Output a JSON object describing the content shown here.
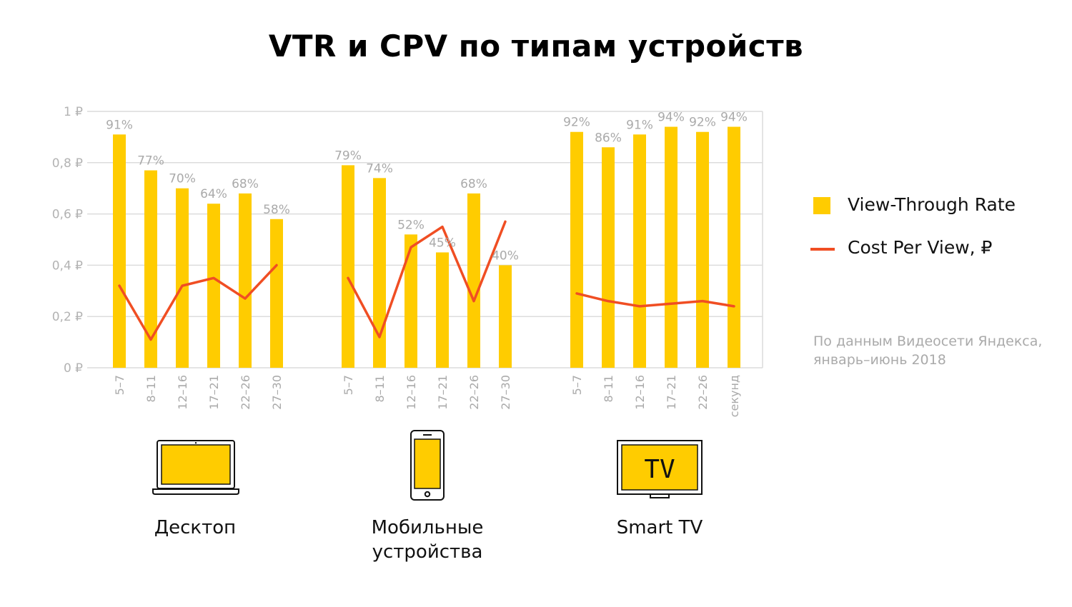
{
  "title": "VTR и CPV по типам устройств",
  "legend": {
    "vtr": "View-Through Rate",
    "cpv": "Cost Per View, ₽"
  },
  "source_note": "По данным Видеосети Яндекса, январь–июнь 2018",
  "devices": {
    "desktop": "Десктоп",
    "mobile": "Мобильные устройства",
    "tv": "Smart TV",
    "tv_screen_text": "TV"
  },
  "colors": {
    "bar": "#ffcc00",
    "line": "#f04e23",
    "grid": "#dcdcdc",
    "tick": "#b3b3b3"
  },
  "icons": [
    "laptop-icon",
    "smartphone-icon",
    "tv-icon"
  ],
  "chart_data": {
    "type": "bar",
    "title": "VTR и CPV по типам устройств",
    "ylim": [
      0,
      1
    ],
    "y_ticks": [
      "0 ₽",
      "0,2 ₽",
      "0,4 ₽",
      "0,6 ₽",
      "0,8 ₽",
      "1 ₽"
    ],
    "grid": true,
    "legend_position": "right",
    "groups": [
      {
        "name": "Десктоп",
        "categories": [
          "5–7",
          "8–11",
          "12–16",
          "17–21",
          "22–26",
          "27–30"
        ],
        "vtr": [
          0.91,
          0.77,
          0.7,
          0.64,
          0.68,
          0.58
        ],
        "vtr_labels": [
          "91%",
          "77%",
          "70%",
          "64%",
          "68%",
          "58%"
        ],
        "cpv": [
          0.32,
          0.11,
          0.32,
          0.35,
          0.27,
          0.4
        ]
      },
      {
        "name": "Мобильные устройства",
        "categories": [
          "5–7",
          "8–11",
          "12–16",
          "17–21",
          "22–26",
          "27–30"
        ],
        "vtr": [
          0.79,
          0.74,
          0.52,
          0.45,
          0.68,
          0.4
        ],
        "vtr_labels": [
          "79%",
          "74%",
          "52%",
          "45%",
          "68%",
          "40%"
        ],
        "cpv": [
          0.35,
          0.12,
          0.47,
          0.55,
          0.26,
          0.57
        ]
      },
      {
        "name": "Smart TV",
        "categories": [
          "5–7",
          "8–11",
          "12–16",
          "17–21",
          "22–26",
          "секунд"
        ],
        "vtr": [
          0.92,
          0.86,
          0.91,
          0.94,
          0.92,
          0.94
        ],
        "vtr_labels": [
          "92%",
          "86%",
          "91%",
          "94%",
          "92%",
          "94%"
        ],
        "cpv": [
          0.29,
          0.26,
          0.24,
          0.25,
          0.26,
          0.24
        ]
      }
    ],
    "series": [
      {
        "name": "View-Through Rate",
        "kind": "bar"
      },
      {
        "name": "Cost Per View, ₽",
        "kind": "line"
      }
    ]
  }
}
